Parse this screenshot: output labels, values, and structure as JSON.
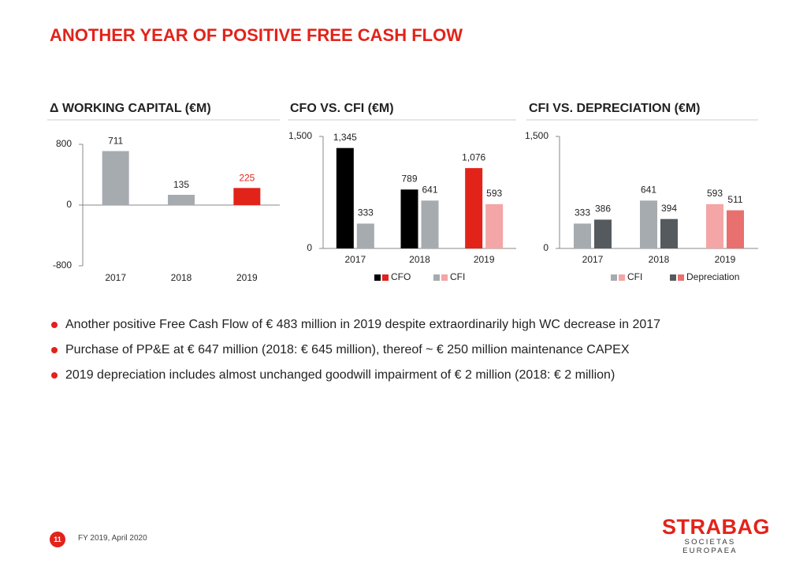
{
  "title": "ANOTHER YEAR OF POSITIVE FREE CASH FLOW",
  "bullets": [
    "Another positive Free Cash Flow of € 483 million in 2019 despite extraordinarily high WC decrease in 2017",
    "Purchase of PP&E at € 647 million (2018: € 645 million), thereof ~ € 250 million maintenance CAPEX",
    "2019 depreciation includes almost unchanged goodwill impairment of € 2 million (2018: € 2 million)"
  ],
  "footer": {
    "page": "11",
    "text": "FY 2019, April 2020"
  },
  "logo": {
    "brand": "STRABAG",
    "subtitle": "SOCIETAS EUROPAEA"
  },
  "chart_data": [
    {
      "type": "bar",
      "title": "Δ WORKING CAPITAL (€M)",
      "categories": [
        "2017",
        "2018",
        "2019"
      ],
      "values": [
        711,
        135,
        225
      ],
      "colors": [
        "#a6abb0",
        "#a6abb0",
        "#e2231a"
      ],
      "label_colors": [
        "#222",
        "#222",
        "#e2231a"
      ],
      "ylim": [
        -800,
        800
      ],
      "yticks": [
        -800,
        0,
        800
      ],
      "grid": false
    },
    {
      "type": "grouped-bar",
      "title": "CFO VS. CFI (€M)",
      "categories": [
        "2017",
        "2018",
        "2019"
      ],
      "series": [
        {
          "name": "CFO",
          "colors": [
            "#000000",
            "#000000",
            "#e2231a"
          ],
          "values": [
            1345,
            789,
            1076
          ],
          "value_labels": [
            "1,345",
            "789",
            "1,076"
          ]
        },
        {
          "name": "CFI",
          "colors": [
            "#a6abb0",
            "#a6abb0",
            "#f4a5a5"
          ],
          "values": [
            333,
            641,
            593
          ]
        }
      ],
      "ylim": [
        0,
        1500
      ],
      "yticks": [
        0,
        {
          "value": 1500,
          "label": "1,500"
        }
      ],
      "grid": false
    },
    {
      "type": "grouped-bar",
      "title": "CFI VS. DEPRECIATION (€M)",
      "categories": [
        "2017",
        "2018",
        "2019"
      ],
      "series": [
        {
          "name": "CFI",
          "colors": [
            "#a6abb0",
            "#a6abb0",
            "#f4a5a5"
          ],
          "values": [
            333,
            641,
            593
          ]
        },
        {
          "name": "Depreciation",
          "colors": [
            "#555a5e",
            "#555a5e",
            "#e8706e"
          ],
          "values": [
            386,
            394,
            511
          ]
        }
      ],
      "ylim": [
        0,
        1500
      ],
      "yticks": [
        0,
        {
          "value": 1500,
          "label": "1,500"
        }
      ],
      "grid": false
    }
  ]
}
